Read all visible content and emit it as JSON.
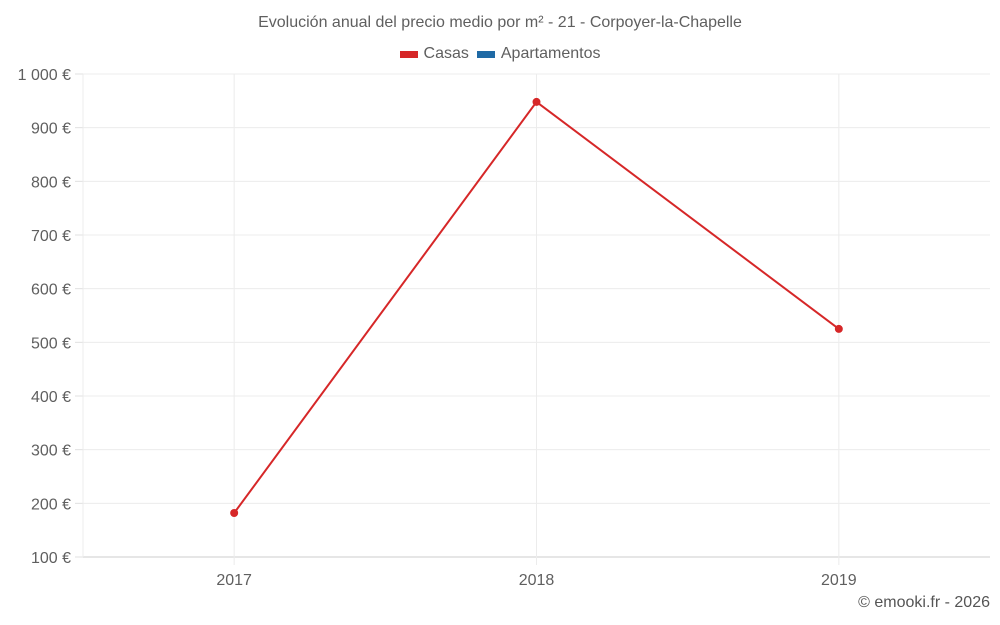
{
  "chart_data": {
    "type": "line",
    "title": "Evolución anual del precio medio por m² - 21 - Corpoyer-la-Chapelle",
    "xlabel": "",
    "ylabel": "",
    "categories": [
      "2017",
      "2018",
      "2019"
    ],
    "series": [
      {
        "name": "Casas",
        "color": "#d62728",
        "values": [
          182,
          948,
          525
        ]
      },
      {
        "name": "Apartamentos",
        "color": "#1f6aa5",
        "values": [
          null,
          null,
          null
        ]
      }
    ],
    "ylim": [
      100,
      1000
    ],
    "yticks": [
      100,
      200,
      300,
      400,
      500,
      600,
      700,
      800,
      900,
      1000
    ],
    "ytick_labels": [
      "100 €",
      "200 €",
      "300 €",
      "400 €",
      "500 €",
      "600 €",
      "700 €",
      "800 €",
      "900 €",
      "1 000 €"
    ],
    "grid": true,
    "legend_position": "top"
  },
  "title": "Evolución anual del precio medio por m² - 21 - Corpoyer-la-Chapelle",
  "legend": [
    {
      "label": "Casas",
      "color": "#d62728"
    },
    {
      "label": "Apartamentos",
      "color": "#1f6aa5"
    }
  ],
  "credit": "© emooki.fr - 2026"
}
